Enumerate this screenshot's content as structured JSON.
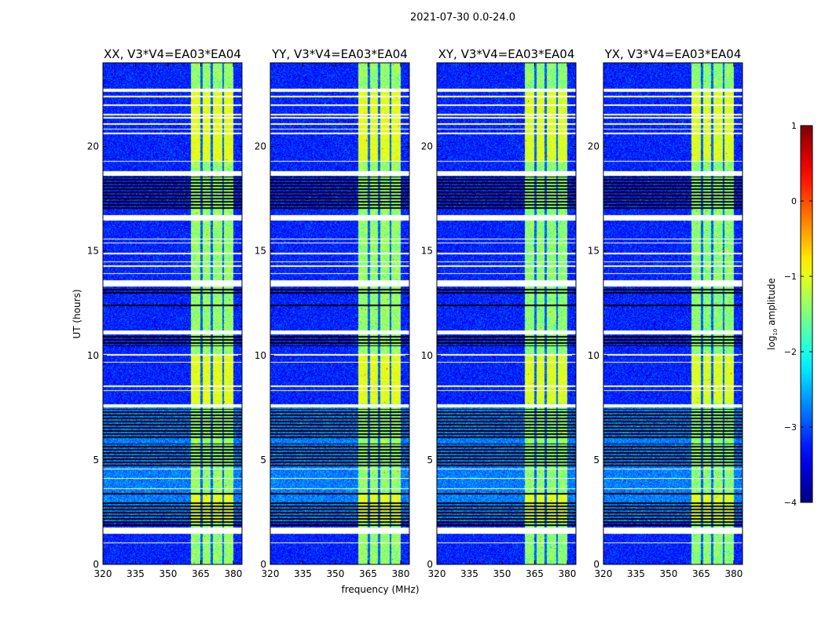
{
  "chart_data": {
    "type": "heatmap",
    "title": "2021-07-30 0.0-24.0",
    "xlabel": "frequency (MHz)",
    "ylabel": "UT (hours)",
    "xlim": [
      320,
      384
    ],
    "ylim": [
      0,
      24
    ],
    "xticks": [
      320,
      335,
      350,
      365,
      380
    ],
    "yticks": [
      0,
      5,
      10,
      15,
      20
    ],
    "panels": [
      {
        "title": "XX, V3*V4=EA03*EA04"
      },
      {
        "title": "YY, V3*V4=EA03*EA04"
      },
      {
        "title": "XY, V3*V4=EA03*EA04"
      },
      {
        "title": "YX, V3*V4=EA03*EA04"
      }
    ],
    "colorbar": {
      "label_main": "log",
      "label_sub": "10",
      "label_rest": " amplitude",
      "range": [
        -4,
        1
      ],
      "ticks": [
        1,
        0,
        -1,
        -2,
        -3,
        -4
      ],
      "tick_labels": [
        "1",
        "0",
        "−1",
        "−2",
        "−3",
        "−4"
      ],
      "colormap": "jet"
    },
    "signal_band_mhz": [
      360.5,
      380
    ],
    "band_gaps_mhz": [
      365.5,
      370.2,
      375.3
    ],
    "background_log_amplitude": -3.2,
    "band_log_amplitude": -1.3,
    "flagged_hours_white": [
      [
        22.6,
        22.75
      ],
      [
        22.35,
        22.42
      ],
      [
        21.95,
        22.02
      ],
      [
        21.5,
        21.55
      ],
      [
        21.35,
        21.4
      ],
      [
        21.05,
        21.1
      ],
      [
        20.8,
        20.85
      ],
      [
        20.6,
        20.65
      ],
      [
        19.25,
        19.3
      ],
      [
        18.6,
        18.82
      ],
      [
        16.45,
        16.7
      ],
      [
        15.55,
        15.6
      ],
      [
        15.35,
        15.4
      ],
      [
        14.85,
        14.9
      ],
      [
        14.45,
        14.5
      ],
      [
        14.25,
        14.3
      ],
      [
        13.9,
        13.95
      ],
      [
        13.3,
        13.6
      ],
      [
        11.0,
        11.2
      ],
      [
        10.0,
        10.05
      ],
      [
        9.65,
        9.7
      ],
      [
        8.5,
        8.55
      ],
      [
        8.3,
        8.35
      ],
      [
        7.5,
        7.68
      ],
      [
        4.55,
        4.6
      ],
      [
        4.1,
        4.15
      ],
      [
        3.6,
        3.65
      ],
      [
        1.48,
        1.75
      ],
      [
        1.0,
        1.05
      ]
    ],
    "flagged_hours_black": [
      [
        17.0,
        18.55
      ],
      [
        12.9,
        13.25
      ],
      [
        12.3,
        12.5
      ],
      [
        10.45,
        10.95
      ],
      [
        6.0,
        7.45
      ],
      [
        4.7,
        5.8
      ],
      [
        3.35,
        3.5
      ],
      [
        2.1,
        3.0
      ],
      [
        1.8,
        2.05
      ]
    ],
    "bright_band_hours": [
      [
        2.0,
        3.4
      ],
      [
        7.7,
        10.0
      ],
      [
        19.3,
        22.6
      ]
    ]
  }
}
